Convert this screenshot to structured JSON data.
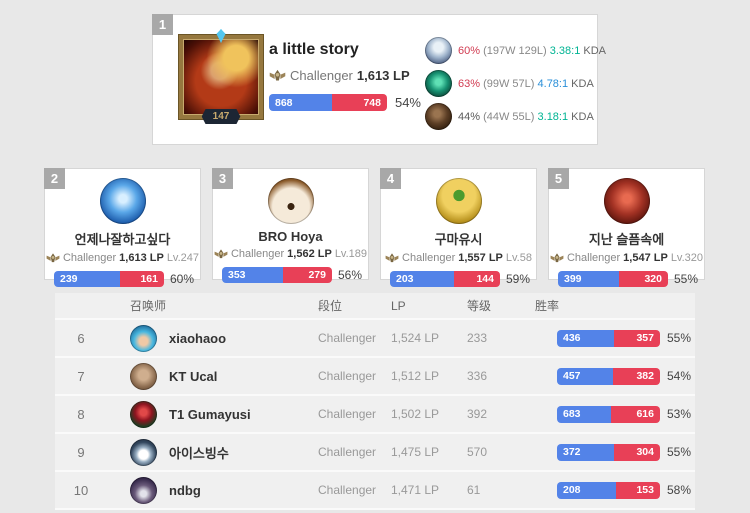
{
  "colors": {
    "win_bar_blue": "#5383e8",
    "loss_bar_red": "#e84057",
    "winrate_high_red": "#d13b51",
    "winrate_low_gray": "#5a5a5a",
    "kda_green": "#00b493",
    "kda_blue": "#2a8fd8"
  },
  "top_player": {
    "rank": "1",
    "name": "a little story",
    "tier": "Challenger",
    "lp": "1,613 LP",
    "level": "147",
    "wins": "868",
    "losses": "748",
    "win_pct": "54%",
    "champions": [
      {
        "win_rate": "60%",
        "win_rate_color": "#d13b51",
        "record": "(197W 129L)",
        "kda": "3.38:1",
        "kda_color": "#00b493",
        "kda_label": "KDA"
      },
      {
        "win_rate": "63%",
        "win_rate_color": "#d13b51",
        "record": "(99W 57L)",
        "kda": "4.78:1",
        "kda_color": "#2a8fd8",
        "kda_label": "KDA"
      },
      {
        "win_rate": "44%",
        "win_rate_color": "#5a5a5a",
        "record": "(44W 55L)",
        "kda": "3.18:1",
        "kda_color": "#00b493",
        "kda_label": "KDA"
      }
    ]
  },
  "cards": [
    {
      "rank": "2",
      "name": "언제나잘하고싶다",
      "tier": "Challenger",
      "lp": "1,613 LP",
      "level": "Lv.247",
      "wins": "239",
      "losses": "161",
      "win_pct": "60%"
    },
    {
      "rank": "3",
      "name": "BRO Hoya",
      "tier": "Challenger",
      "lp": "1,562 LP",
      "level": "Lv.189",
      "wins": "353",
      "losses": "279",
      "win_pct": "56%"
    },
    {
      "rank": "4",
      "name": "구마유시",
      "tier": "Challenger",
      "lp": "1,557 LP",
      "level": "Lv.58",
      "wins": "203",
      "losses": "144",
      "win_pct": "59%"
    },
    {
      "rank": "5",
      "name": "지난 슬픔속에",
      "tier": "Challenger",
      "lp": "1,547 LP",
      "level": "Lv.320",
      "wins": "399",
      "losses": "320",
      "win_pct": "55%"
    }
  ],
  "table": {
    "headers": {
      "summoner": "召唤师",
      "tier": "段位",
      "lp": "LP",
      "level": "等级",
      "winrate": "胜率"
    },
    "rows": [
      {
        "rank": "6",
        "name": "xiaohaoo",
        "tier": "Challenger",
        "lp": "1,524 LP",
        "level": "233",
        "wins": "436",
        "losses": "357",
        "win_pct": "55%"
      },
      {
        "rank": "7",
        "name": "KT Ucal",
        "tier": "Challenger",
        "lp": "1,512 LP",
        "level": "336",
        "wins": "457",
        "losses": "382",
        "win_pct": "54%"
      },
      {
        "rank": "8",
        "name": "T1 Gumayusi",
        "tier": "Challenger",
        "lp": "1,502 LP",
        "level": "392",
        "wins": "683",
        "losses": "616",
        "win_pct": "53%"
      },
      {
        "rank": "9",
        "name": "아이스빙수",
        "tier": "Challenger",
        "lp": "1,475 LP",
        "level": "570",
        "wins": "372",
        "losses": "304",
        "win_pct": "55%"
      },
      {
        "rank": "10",
        "name": "ndbg",
        "tier": "Challenger",
        "lp": "1,471 LP",
        "level": "61",
        "wins": "208",
        "losses": "153",
        "win_pct": "58%"
      }
    ]
  }
}
